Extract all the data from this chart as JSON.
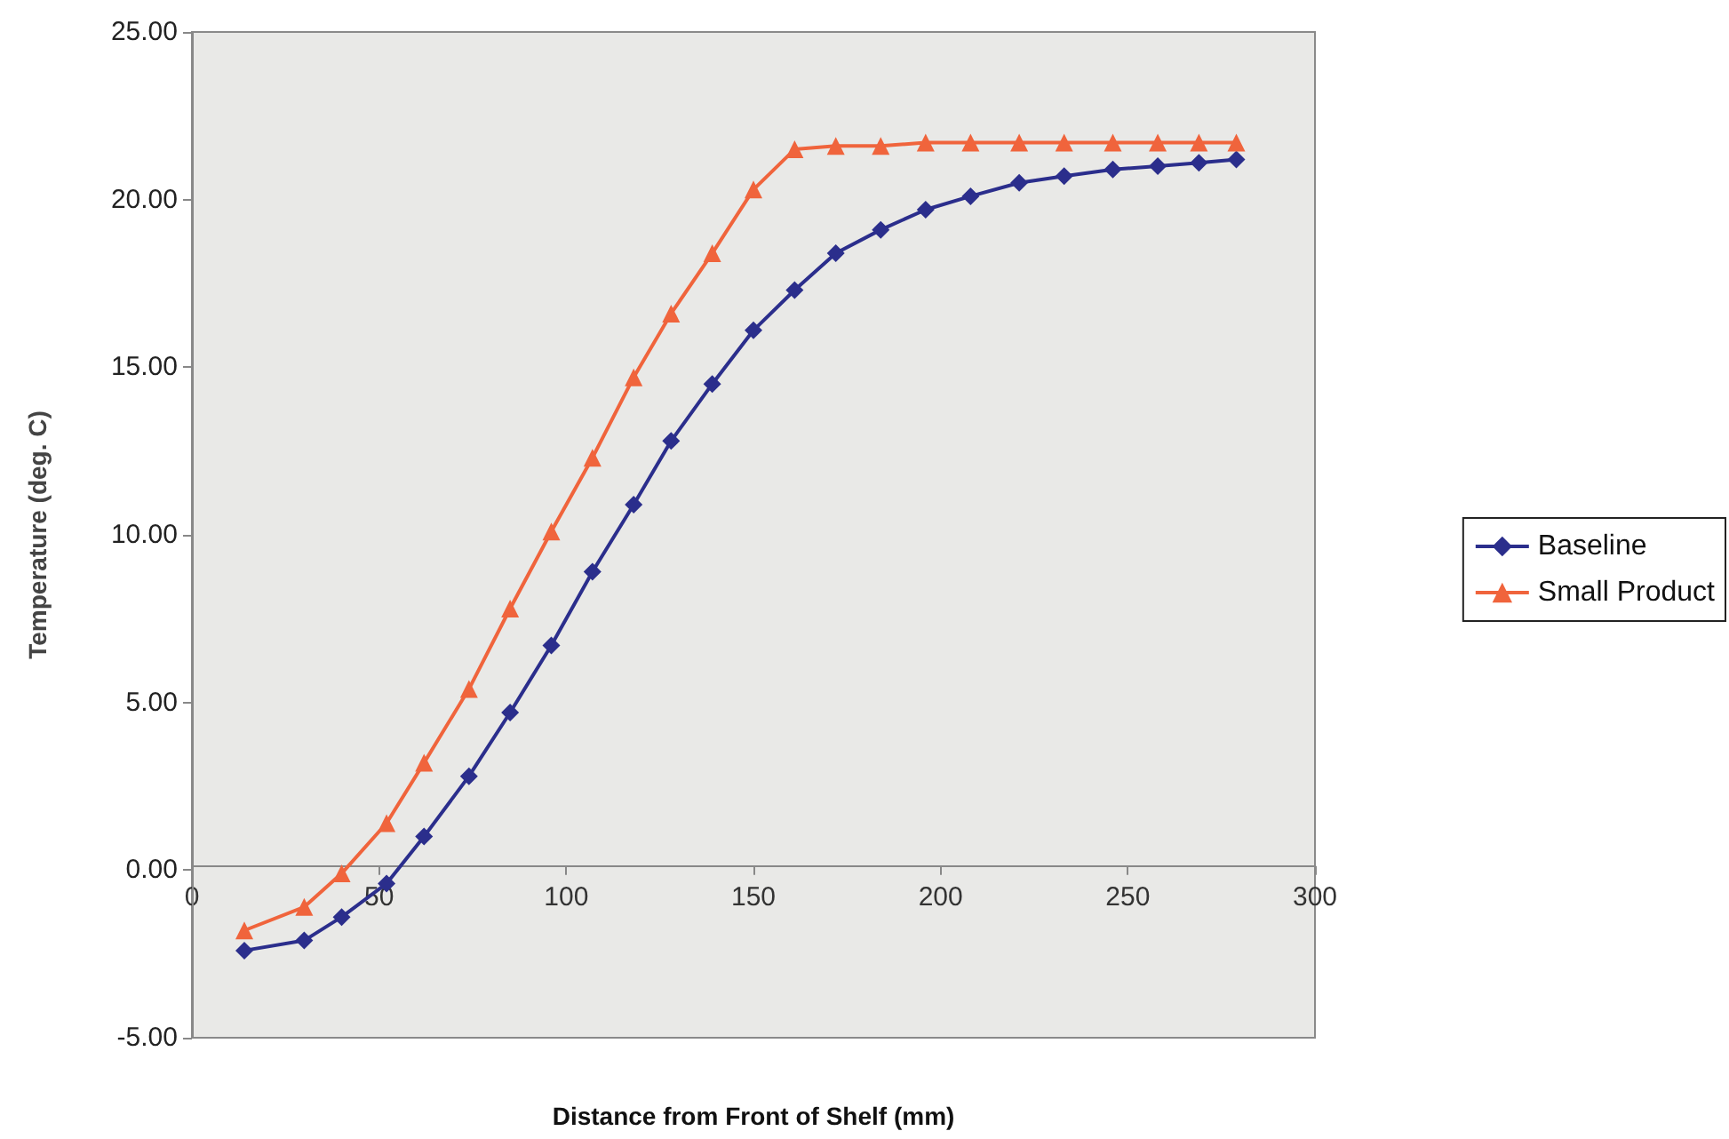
{
  "chart_data": {
    "type": "line",
    "xlabel": "Distance from Front of Shelf (mm)",
    "ylabel": "Temperature (deg. C)",
    "xlim": [
      0,
      300
    ],
    "xticks": [
      0,
      50,
      100,
      150,
      200,
      250,
      300
    ],
    "ylim": [
      -5,
      25
    ],
    "yticks": [
      {
        "value": -5,
        "label": "-5.00"
      },
      {
        "value": 0,
        "label": "0.00"
      },
      {
        "value": 5,
        "label": "5.00"
      },
      {
        "value": 10,
        "label": "10.00"
      },
      {
        "value": 15,
        "label": "15.00"
      },
      {
        "value": 20,
        "label": "20.00"
      },
      {
        "value": 25,
        "label": "25.00"
      }
    ],
    "grid": false,
    "legend": "right",
    "series": [
      {
        "name": "Baseline",
        "color": "#2b2e8c",
        "marker": "diamond",
        "x": [
          14,
          30,
          40,
          52,
          62,
          74,
          85,
          96,
          107,
          118,
          128,
          139,
          150,
          161,
          172,
          184,
          196,
          208,
          221,
          233,
          246,
          258,
          269,
          279
        ],
        "values": [
          -2.4,
          -2.1,
          -1.4,
          -0.4,
          1.0,
          2.8,
          4.7,
          6.7,
          8.9,
          10.9,
          12.8,
          14.5,
          16.1,
          17.3,
          18.4,
          19.1,
          19.7,
          20.1,
          20.5,
          20.7,
          20.9,
          21.0,
          21.1,
          21.2
        ]
      },
      {
        "name": "Small Product",
        "color": "#f0643c",
        "marker": "triangle",
        "x": [
          14,
          30,
          40,
          52,
          62,
          74,
          85,
          96,
          107,
          118,
          128,
          139,
          150,
          161,
          172,
          184,
          196,
          208,
          221,
          233,
          246,
          258,
          269,
          279
        ],
        "values": [
          -1.8,
          -1.1,
          -0.1,
          1.4,
          3.2,
          5.4,
          7.8,
          10.1,
          12.3,
          14.7,
          16.6,
          18.4,
          20.3,
          21.5,
          21.6,
          21.6,
          21.7,
          21.7,
          21.7,
          21.7,
          21.7,
          21.7,
          21.7,
          21.7
        ]
      }
    ]
  }
}
